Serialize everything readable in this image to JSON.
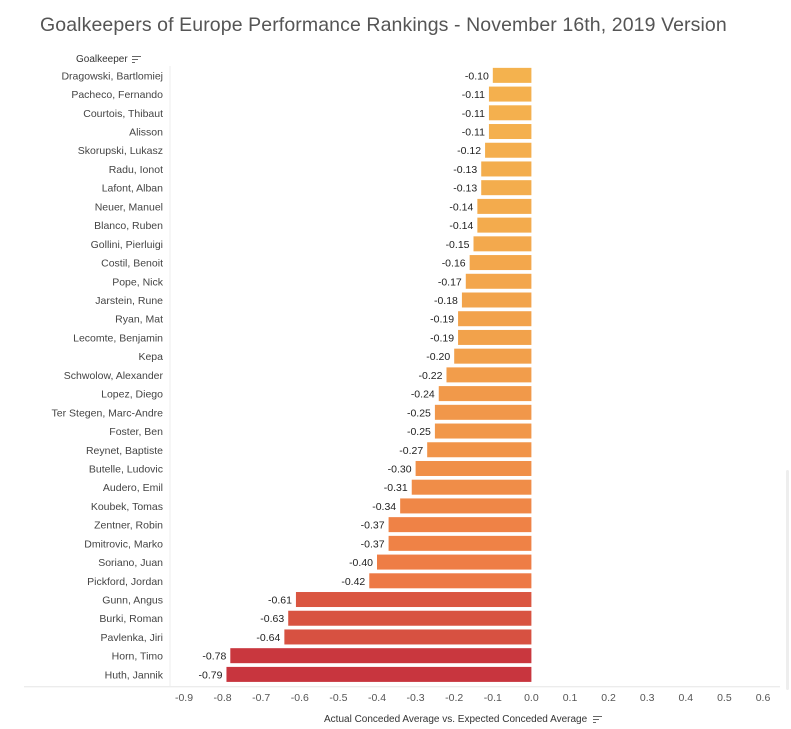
{
  "title": "Goalkeepers of Europe Performance Rankings - November 16th, 2019 Version",
  "y_header": "Goalkeeper",
  "x_title": "Actual Conceded Average vs. Expected Conceded Average",
  "colors": {
    "light": "#f4b24e",
    "mid": "#ee7b45",
    "dark": "#c8353e"
  },
  "chart_data": {
    "type": "bar",
    "orientation": "horizontal",
    "title": "Goalkeepers of Europe Performance Rankings - November 16th, 2019 Version",
    "ylabel": "Goalkeeper",
    "xlabel": "Actual Conceded Average vs. Expected Conceded Average",
    "xlim": [
      -0.9,
      0.6
    ],
    "x_ticks": [
      "-0.9",
      "-0.8",
      "-0.7",
      "-0.6",
      "-0.5",
      "-0.4",
      "-0.3",
      "-0.2",
      "-0.1",
      "0.0",
      "0.1",
      "0.2",
      "0.3",
      "0.4",
      "0.5",
      "0.6"
    ],
    "categories": [
      "Dragowski, Bartlomiej",
      "Pacheco, Fernando",
      "Courtois, Thibaut",
      "Alisson",
      "Skorupski, Lukasz",
      "Radu, Ionot",
      "Lafont, Alban",
      "Neuer, Manuel",
      "Blanco, Ruben",
      "Gollini, Pierluigi",
      "Costil, Benoit",
      "Pope, Nick",
      "Jarstein, Rune",
      "Ryan, Mat",
      "Lecomte, Benjamin",
      "Kepa",
      "Schwolow, Alexander",
      "Lopez, Diego",
      "Ter Stegen, Marc-Andre",
      "Foster, Ben",
      "Reynet, Baptiste",
      "Butelle, Ludovic",
      "Audero, Emil",
      "Koubek, Tomas",
      "Zentner, Robin",
      "Dmitrovic, Marko",
      "Soriano, Juan",
      "Pickford, Jordan",
      "Gunn, Angus",
      "Burki, Roman",
      "Pavlenka, Jiri",
      "Horn, Timo",
      "Huth, Jannik"
    ],
    "values": [
      -0.1,
      -0.11,
      -0.11,
      -0.11,
      -0.12,
      -0.13,
      -0.13,
      -0.14,
      -0.14,
      -0.15,
      -0.16,
      -0.17,
      -0.18,
      -0.19,
      -0.19,
      -0.2,
      -0.22,
      -0.24,
      -0.25,
      -0.25,
      -0.27,
      -0.3,
      -0.31,
      -0.34,
      -0.37,
      -0.37,
      -0.4,
      -0.42,
      -0.61,
      -0.63,
      -0.64,
      -0.78,
      -0.79
    ],
    "value_labels": [
      "-0.10",
      "-0.11",
      "-0.11",
      "-0.11",
      "-0.12",
      "-0.13",
      "-0.13",
      "-0.14",
      "-0.14",
      "-0.15",
      "-0.16",
      "-0.17",
      "-0.18",
      "-0.19",
      "-0.19",
      "-0.20",
      "-0.22",
      "-0.24",
      "-0.25",
      "-0.25",
      "-0.27",
      "-0.30",
      "-0.31",
      "-0.34",
      "-0.37",
      "-0.37",
      "-0.40",
      "-0.42",
      "-0.61",
      "-0.63",
      "-0.64",
      "-0.78",
      "-0.79"
    ]
  }
}
